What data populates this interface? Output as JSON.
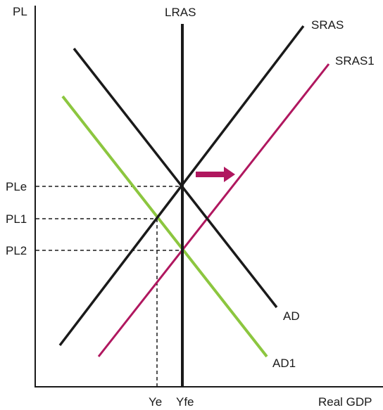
{
  "axes": {
    "y_label": "PL",
    "x_label": "Real GDP"
  },
  "curves": {
    "lras": {
      "label": "LRAS",
      "color": "#1a1a1a"
    },
    "sras": {
      "label": "SRAS",
      "color": "#1a1a1a"
    },
    "sras1": {
      "label": "SRAS1",
      "color": "#b0175f"
    },
    "ad": {
      "label": "AD",
      "color": "#1a1a1a"
    },
    "ad1": {
      "label": "AD1",
      "color": "#8cc63f"
    }
  },
  "price_levels": {
    "ple": "PLe",
    "pl1": "PL1",
    "pl2": "PL2"
  },
  "output_levels": {
    "ye": "Ye",
    "yfe": "Yfe"
  },
  "shift_arrow": {
    "color": "#b0175f",
    "direction": "right"
  }
}
